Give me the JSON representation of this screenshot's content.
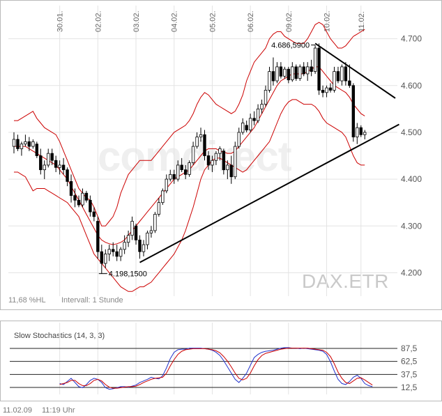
{
  "main_chart": {
    "watermark_brand": "comdirect",
    "watermark_symbol": "DAX.ETR",
    "hl_label": "11,68 %HL",
    "interval_label": "Intervall: 1 Stunde",
    "annotations": {
      "high_label": "4.686,5900",
      "low_label": "4.198,1500"
    }
  },
  "stoch_chart": {
    "title": "Slow Stochastics (14, 3, 3)"
  },
  "footer": {
    "date": "11.02.09",
    "time": "11:19 Uhr"
  },
  "colors": {
    "bollinger": "#cc0000",
    "trendline": "#000000",
    "stoch_k": "#2233cc",
    "stoch_d": "#cc0000",
    "grid": "#e3e3e3",
    "candle": "#000000"
  },
  "chart_data": [
    {
      "type": "candlestick",
      "interval": "1 Stunde",
      "ylim": [
        4150,
        4750
      ],
      "y_ticks": [
        4200,
        4300,
        4400,
        4500,
        4600,
        4700
      ],
      "y_tick_labels": [
        "4.200",
        "4.300",
        "4.400",
        "4.500",
        "4.600",
        "4.700"
      ],
      "x_tick_labels": [
        "30.01.",
        "02.02.",
        "03.02.",
        "04.02.",
        "05.02.",
        "06.02.",
        "09.02.",
        "10.02.",
        "11.02."
      ],
      "x_tick_bar_index": [
        12,
        22,
        32,
        42,
        52,
        62,
        72,
        82,
        91
      ],
      "grid": true,
      "ohlc": [
        [
          4470,
          4500,
          4455,
          4485
        ],
        [
          4485,
          4495,
          4460,
          4465
        ],
        [
          4465,
          4480,
          4450,
          4475
        ],
        [
          4475,
          4495,
          4470,
          4480
        ],
        [
          4480,
          4490,
          4460,
          4470
        ],
        [
          4470,
          4485,
          4465,
          4480
        ],
        [
          4475,
          4480,
          4445,
          4450
        ],
        [
          4450,
          4465,
          4410,
          4420
        ],
        [
          4420,
          4440,
          4400,
          4430
        ],
        [
          4430,
          4465,
          4425,
          4455
        ],
        [
          4455,
          4465,
          4430,
          4440
        ],
        [
          4440,
          4450,
          4415,
          4425
        ],
        [
          4425,
          4440,
          4410,
          4430
        ],
        [
          4430,
          4445,
          4410,
          4420
        ],
        [
          4420,
          4425,
          4385,
          4395
        ],
        [
          4395,
          4410,
          4350,
          4365
        ],
        [
          4365,
          4380,
          4340,
          4355
        ],
        [
          4355,
          4365,
          4340,
          4345
        ],
        [
          4345,
          4380,
          4340,
          4370
        ],
        [
          4370,
          4375,
          4350,
          4355
        ],
        [
          4355,
          4365,
          4320,
          4330
        ],
        [
          4330,
          4340,
          4310,
          4320
        ],
        [
          4310,
          4320,
          4230,
          4245
        ],
        [
          4245,
          4260,
          4198,
          4220
        ],
        [
          4220,
          4250,
          4210,
          4240
        ],
        [
          4240,
          4260,
          4225,
          4250
        ],
        [
          4250,
          4265,
          4235,
          4245
        ],
        [
          4245,
          4260,
          4225,
          4235
        ],
        [
          4235,
          4255,
          4225,
          4250
        ],
        [
          4250,
          4280,
          4240,
          4265
        ],
        [
          4265,
          4290,
          4255,
          4280
        ],
        [
          4280,
          4320,
          4270,
          4310
        ],
        [
          4300,
          4305,
          4260,
          4270
        ],
        [
          4270,
          4280,
          4230,
          4245
        ],
        [
          4245,
          4270,
          4235,
          4260
        ],
        [
          4260,
          4290,
          4250,
          4285
        ],
        [
          4285,
          4300,
          4275,
          4290
        ],
        [
          4290,
          4330,
          4285,
          4325
        ],
        [
          4325,
          4360,
          4320,
          4350
        ],
        [
          4350,
          4380,
          4345,
          4375
        ],
        [
          4375,
          4410,
          4370,
          4400
        ],
        [
          4400,
          4420,
          4395,
          4410
        ],
        [
          4410,
          4420,
          4390,
          4400
        ],
        [
          4400,
          4440,
          4395,
          4430
        ],
        [
          4430,
          4445,
          4415,
          4420
        ],
        [
          4420,
          4430,
          4400,
          4410
        ],
        [
          4410,
          4440,
          4405,
          4435
        ],
        [
          4435,
          4480,
          4430,
          4470
        ],
        [
          4470,
          4500,
          4465,
          4490
        ],
        [
          4490,
          4510,
          4480,
          4495
        ],
        [
          4495,
          4505,
          4440,
          4450
        ],
        [
          4450,
          4460,
          4420,
          4430
        ],
        [
          4430,
          4450,
          4415,
          4440
        ],
        [
          4440,
          4460,
          4430,
          4455
        ],
        [
          4455,
          4470,
          4440,
          4465
        ],
        [
          4460,
          4465,
          4410,
          4420
        ],
        [
          4420,
          4440,
          4400,
          4430
        ],
        [
          4430,
          4450,
          4390,
          4405
        ],
        [
          4405,
          4480,
          4400,
          4470
        ],
        [
          4470,
          4510,
          4465,
          4500
        ],
        [
          4500,
          4530,
          4495,
          4520
        ],
        [
          4515,
          4525,
          4500,
          4505
        ],
        [
          4505,
          4540,
          4500,
          4530
        ],
        [
          4530,
          4545,
          4515,
          4525
        ],
        [
          4525,
          4560,
          4520,
          4550
        ],
        [
          4550,
          4570,
          4540,
          4560
        ],
        [
          4560,
          4600,
          4555,
          4590
        ],
        [
          4590,
          4640,
          4585,
          4630
        ],
        [
          4630,
          4660,
          4600,
          4610
        ],
        [
          4610,
          4650,
          4605,
          4640
        ],
        [
          4640,
          4650,
          4615,
          4620
        ],
        [
          4620,
          4640,
          4615,
          4635
        ],
        [
          4635,
          4640,
          4605,
          4612
        ],
        [
          4612,
          4650,
          4608,
          4640
        ],
        [
          4640,
          4645,
          4610,
          4615
        ],
        [
          4615,
          4645,
          4610,
          4640
        ],
        [
          4640,
          4650,
          4620,
          4625
        ],
        [
          4625,
          4650,
          4610,
          4640
        ],
        [
          4640,
          4655,
          4620,
          4630
        ],
        [
          4630,
          4686,
          4625,
          4680
        ],
        [
          4680,
          4690,
          4580,
          4590
        ],
        [
          4590,
          4600,
          4575,
          4585
        ],
        [
          4585,
          4600,
          4575,
          4595
        ],
        [
          4595,
          4605,
          4585,
          4590
        ],
        [
          4590,
          4640,
          4585,
          4630
        ],
        [
          4630,
          4640,
          4605,
          4610
        ],
        [
          4610,
          4645,
          4600,
          4640
        ],
        [
          4640,
          4650,
          4600,
          4610
        ],
        [
          4610,
          4645,
          4595,
          4600
        ],
        [
          4600,
          4605,
          4480,
          4490
        ],
        [
          4490,
          4520,
          4475,
          4510
        ],
        [
          4510,
          4515,
          4490,
          4495
        ],
        [
          4495,
          4505,
          4485,
          4500
        ]
      ],
      "bollinger_upper": [
        4525,
        4525,
        4530,
        4535,
        4540,
        4545,
        4530,
        4520,
        4510,
        4505,
        4500,
        4495,
        4480,
        4460,
        4440,
        4420,
        4400,
        4380,
        4370,
        4360,
        4355,
        4340,
        4320,
        4300,
        4300,
        4310,
        4320,
        4340,
        4370,
        4390,
        4410,
        4420,
        4430,
        4440,
        4440,
        4440,
        4440,
        4450,
        4460,
        4470,
        4480,
        4490,
        4500,
        4505,
        4510,
        4515,
        4525,
        4540,
        4560,
        4575,
        4585,
        4580,
        4570,
        4560,
        4555,
        4550,
        4545,
        4540,
        4545,
        4560,
        4580,
        4610,
        4630,
        4650,
        4660,
        4670,
        4680,
        4700,
        4710,
        4715,
        4715,
        4705,
        4700,
        4695,
        4690,
        4690,
        4690,
        4700,
        4715,
        4730,
        4735,
        4730,
        4715,
        4700,
        4690,
        4680,
        4680,
        4685,
        4695,
        4705,
        4710,
        4715,
        4720
      ],
      "bollinger_middle": [
        4470,
        4470,
        4470,
        4470,
        4465,
        4460,
        4455,
        4450,
        4445,
        4440,
        4435,
        4430,
        4420,
        4410,
        4400,
        4385,
        4370,
        4355,
        4340,
        4325,
        4310,
        4295,
        4280,
        4270,
        4265,
        4262,
        4260,
        4262,
        4265,
        4270,
        4280,
        4290,
        4300,
        4310,
        4320,
        4330,
        4340,
        4350,
        4360,
        4370,
        4380,
        4390,
        4400,
        4405,
        4410,
        4415,
        4420,
        4430,
        4440,
        4450,
        4460,
        4465,
        4465,
        4465,
        4460,
        4458,
        4455,
        4455,
        4460,
        4470,
        4480,
        4490,
        4500,
        4510,
        4525,
        4540,
        4555,
        4570,
        4585,
        4600,
        4610,
        4615,
        4620,
        4625,
        4625,
        4625,
        4625,
        4630,
        4635,
        4640,
        4640,
        4630,
        4620,
        4610,
        4600,
        4595,
        4590,
        4585,
        4575,
        4560,
        4550,
        4540,
        4535
      ],
      "bollinger_lower": [
        4415,
        4415,
        4410,
        4405,
        4390,
        4375,
        4380,
        4380,
        4380,
        4375,
        4370,
        4365,
        4360,
        4355,
        4350,
        4340,
        4330,
        4320,
        4300,
        4280,
        4260,
        4240,
        4230,
        4220,
        4210,
        4200,
        4190,
        4180,
        4170,
        4165,
        4160,
        4160,
        4165,
        4170,
        4170,
        4175,
        4180,
        4190,
        4200,
        4210,
        4220,
        4230,
        4240,
        4255,
        4270,
        4290,
        4315,
        4340,
        4370,
        4400,
        4420,
        4430,
        4440,
        4445,
        4445,
        4440,
        4435,
        4430,
        4425,
        4420,
        4415,
        4420,
        4430,
        4440,
        4450,
        4460,
        4470,
        4480,
        4500,
        4520,
        4540,
        4555,
        4565,
        4570,
        4570,
        4565,
        4560,
        4560,
        4560,
        4555,
        4545,
        4530,
        4520,
        4515,
        4510,
        4505,
        4500,
        4490,
        4470,
        4450,
        4435,
        4430,
        4430
      ],
      "trendlines": [
        {
          "from": [
            33,
            4222
          ],
          "to": [
            101,
            4517
          ]
        },
        {
          "from": [
            79,
            4690
          ],
          "to": [
            100,
            4573
          ]
        }
      ],
      "annotations": [
        {
          "bar": 79,
          "value": 4686.59,
          "label": "4.686,5900"
        },
        {
          "bar": 23,
          "value": 4198.15,
          "label": "4.198,1500"
        }
      ]
    },
    {
      "type": "line",
      "title": "Slow Stochastics (14, 3, 3)",
      "ylim": [
        0,
        100
      ],
      "y_ticks": [
        12.5,
        37.5,
        62.5,
        87.5
      ],
      "y_tick_labels": [
        "12,5",
        "37,5",
        "62,5",
        "87,5"
      ],
      "start_bar": 12,
      "series": [
        {
          "color": "#2233cc",
          "values": [
            20,
            18,
            24,
            30,
            22,
            14,
            12,
            18,
            26,
            30,
            28,
            22,
            12,
            9,
            10,
            12,
            14,
            14,
            13,
            15,
            17,
            22,
            25,
            28,
            32,
            30,
            29,
            35,
            50,
            68,
            80,
            85,
            86,
            86,
            88,
            88,
            88,
            88,
            87,
            86,
            84,
            80,
            74,
            64,
            52,
            40,
            28,
            22,
            30,
            40,
            55,
            70,
            76,
            80,
            82,
            83,
            84,
            86,
            88,
            89,
            89,
            88,
            88,
            87,
            88,
            87,
            86,
            85,
            84,
            82,
            76,
            62,
            44,
            28,
            20,
            18,
            24,
            32,
            36,
            30,
            20,
            16,
            14
          ]
        },
        {
          "color": "#cc0000",
          "values": [
            18,
            20,
            22,
            26,
            26,
            20,
            16,
            16,
            20,
            26,
            28,
            25,
            18,
            13,
            11,
            11,
            12,
            13,
            14,
            14,
            15,
            18,
            22,
            25,
            28,
            30,
            31,
            32,
            40,
            54,
            66,
            76,
            82,
            85,
            86,
            87,
            87,
            87,
            87,
            86,
            85,
            83,
            79,
            72,
            63,
            52,
            40,
            30,
            27,
            30,
            40,
            54,
            66,
            74,
            78,
            80,
            82,
            84,
            86,
            87,
            88,
            88,
            88,
            88,
            88,
            88,
            87,
            86,
            85,
            84,
            80,
            72,
            58,
            42,
            30,
            22,
            20,
            25,
            30,
            31,
            27,
            22,
            17
          ]
        }
      ]
    }
  ]
}
